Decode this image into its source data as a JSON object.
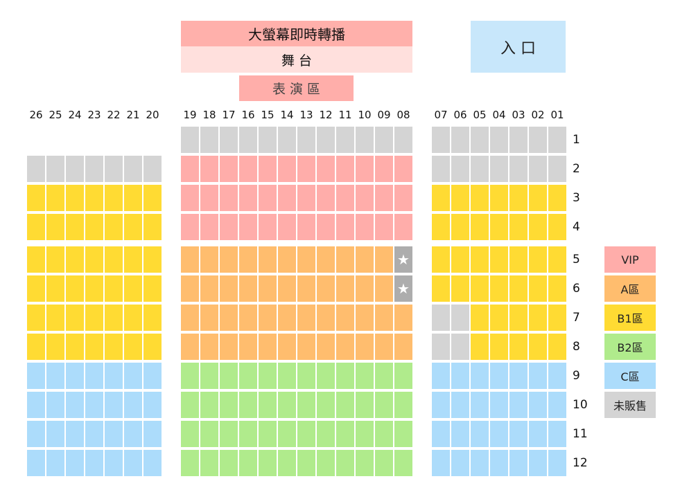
{
  "header": {
    "screen_label": "大螢幕即時轉播",
    "stage_label": "舞 台",
    "performance_area_label": "表 演 區",
    "entrance_label": "入 口"
  },
  "colors": {
    "screen": "#ffb0ab",
    "stage": "#ffe0dd",
    "performance": "#ffaeaa",
    "entrance": "#c8e7fb"
  },
  "categories": {
    "V": {
      "label": "VIP",
      "color": "#ffadaa"
    },
    "A": {
      "label": "A區",
      "color": "#ffbd6e"
    },
    "B1": {
      "label": "B1區",
      "color": "#ffdb33"
    },
    "B2": {
      "label": "B2區",
      "color": "#b0eb8c"
    },
    "C": {
      "label": "C區",
      "color": "#acdcfb"
    },
    "G": {
      "label": "未販售",
      "color": "#d4d4d4"
    },
    "S": {
      "label": "",
      "color": "#adadad",
      "icon": "star"
    }
  },
  "legend": [
    "V",
    "A",
    "B1",
    "B2",
    "C",
    "G"
  ],
  "columns": {
    "left": [
      "26",
      "25",
      "24",
      "23",
      "22",
      "21",
      "20"
    ],
    "center": [
      "19",
      "18",
      "17",
      "16",
      "15",
      "14",
      "13",
      "12",
      "11",
      "10",
      "09",
      "08"
    ],
    "right": [
      "07",
      "06",
      "05",
      "04",
      "03",
      "02",
      "01"
    ]
  },
  "rows": [
    {
      "label": "1",
      "left": [
        "",
        "",
        "",
        "",
        "",
        "",
        ""
      ],
      "center": [
        "G",
        "G",
        "G",
        "G",
        "G",
        "G",
        "G",
        "G",
        "G",
        "G",
        "G",
        "G"
      ],
      "right": [
        "G",
        "G",
        "G",
        "G",
        "G",
        "G",
        "G"
      ]
    },
    {
      "label": "2",
      "left": [
        "G",
        "G",
        "G",
        "G",
        "G",
        "G",
        "G"
      ],
      "center": [
        "V",
        "V",
        "V",
        "V",
        "V",
        "V",
        "V",
        "V",
        "V",
        "V",
        "V",
        "V"
      ],
      "right": [
        "G",
        "G",
        "G",
        "G",
        "G",
        "G",
        "G"
      ]
    },
    {
      "label": "3",
      "left": [
        "B1",
        "B1",
        "B1",
        "B1",
        "B1",
        "B1",
        "B1"
      ],
      "center": [
        "V",
        "V",
        "V",
        "V",
        "V",
        "V",
        "V",
        "V",
        "V",
        "V",
        "V",
        "V"
      ],
      "right": [
        "B1",
        "B1",
        "B1",
        "B1",
        "B1",
        "B1",
        "B1"
      ]
    },
    {
      "label": "4",
      "left": [
        "B1",
        "B1",
        "B1",
        "B1",
        "B1",
        "B1",
        "B1"
      ],
      "center": [
        "V",
        "V",
        "V",
        "V",
        "V",
        "V",
        "V",
        "V",
        "V",
        "V",
        "V",
        "V"
      ],
      "right": [
        "B1",
        "B1",
        "B1",
        "B1",
        "B1",
        "B1",
        "B1"
      ]
    },
    {
      "label": "5",
      "left": [
        "B1",
        "B1",
        "B1",
        "B1",
        "B1",
        "B1",
        "B1"
      ],
      "center": [
        "A",
        "A",
        "A",
        "A",
        "A",
        "A",
        "A",
        "A",
        "A",
        "A",
        "A",
        "S"
      ],
      "right": [
        "B1",
        "B1",
        "B1",
        "B1",
        "B1",
        "B1",
        "B1"
      ]
    },
    {
      "label": "6",
      "left": [
        "B1",
        "B1",
        "B1",
        "B1",
        "B1",
        "B1",
        "B1"
      ],
      "center": [
        "A",
        "A",
        "A",
        "A",
        "A",
        "A",
        "A",
        "A",
        "A",
        "A",
        "A",
        "S"
      ],
      "right": [
        "B1",
        "B1",
        "B1",
        "B1",
        "B1",
        "B1",
        "B1"
      ]
    },
    {
      "label": "7",
      "left": [
        "B1",
        "B1",
        "B1",
        "B1",
        "B1",
        "B1",
        "B1"
      ],
      "center": [
        "A",
        "A",
        "A",
        "A",
        "A",
        "A",
        "A",
        "A",
        "A",
        "A",
        "A",
        "A"
      ],
      "right": [
        "G",
        "G",
        "B1",
        "B1",
        "B1",
        "B1",
        "B1"
      ]
    },
    {
      "label": "8",
      "left": [
        "B1",
        "B1",
        "B1",
        "B1",
        "B1",
        "B1",
        "B1"
      ],
      "center": [
        "A",
        "A",
        "A",
        "A",
        "A",
        "A",
        "A",
        "A",
        "A",
        "A",
        "A",
        "A"
      ],
      "right": [
        "G",
        "G",
        "B1",
        "B1",
        "B1",
        "B1",
        "B1"
      ]
    },
    {
      "label": "9",
      "left": [
        "C",
        "C",
        "C",
        "C",
        "C",
        "C",
        "C"
      ],
      "center": [
        "B2",
        "B2",
        "B2",
        "B2",
        "B2",
        "B2",
        "B2",
        "B2",
        "B2",
        "B2",
        "B2",
        "B2"
      ],
      "right": [
        "C",
        "C",
        "C",
        "C",
        "C",
        "C",
        "C"
      ]
    },
    {
      "label": "10",
      "left": [
        "C",
        "C",
        "C",
        "C",
        "C",
        "C",
        "C"
      ],
      "center": [
        "B2",
        "B2",
        "B2",
        "B2",
        "B2",
        "B2",
        "B2",
        "B2",
        "B2",
        "B2",
        "B2",
        "B2"
      ],
      "right": [
        "C",
        "C",
        "C",
        "C",
        "C",
        "C",
        "C"
      ]
    },
    {
      "label": "11",
      "left": [
        "C",
        "C",
        "C",
        "C",
        "C",
        "C",
        "C"
      ],
      "center": [
        "B2",
        "B2",
        "B2",
        "B2",
        "B2",
        "B2",
        "B2",
        "B2",
        "B2",
        "B2",
        "B2",
        "B2"
      ],
      "right": [
        "C",
        "C",
        "C",
        "C",
        "C",
        "C",
        "C"
      ]
    },
    {
      "label": "12",
      "left": [
        "C",
        "C",
        "C",
        "C",
        "C",
        "C",
        "C"
      ],
      "center": [
        "B2",
        "B2",
        "B2",
        "B2",
        "B2",
        "B2",
        "B2",
        "B2",
        "B2",
        "B2",
        "B2",
        "B2"
      ],
      "right": [
        "C",
        "C",
        "C",
        "C",
        "C",
        "C",
        "C"
      ]
    }
  ]
}
